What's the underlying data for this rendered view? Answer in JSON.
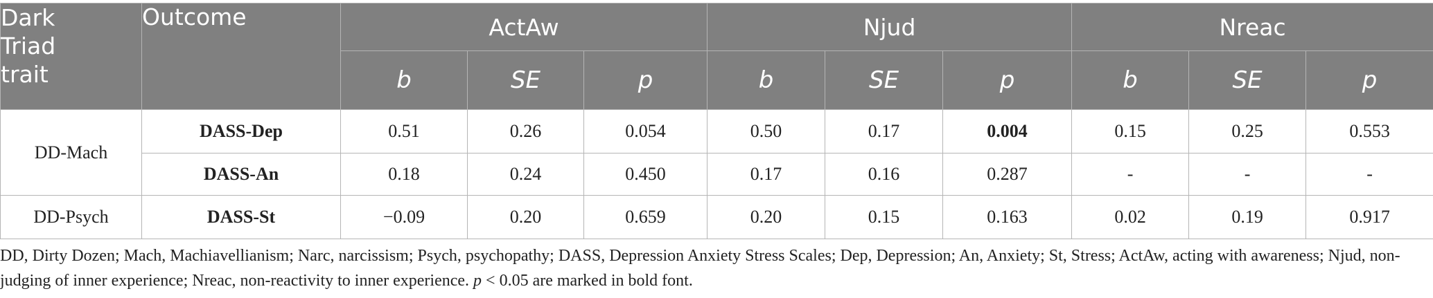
{
  "header": {
    "trait_line1": "Dark",
    "trait_line2": "Triad",
    "trait_line3": "trait",
    "outcome": "Outcome",
    "groups": [
      "ActAw",
      "Njud",
      "Nreac"
    ],
    "sub": [
      "b",
      "SE",
      "p"
    ]
  },
  "rows": [
    {
      "trait": "DD-Mach",
      "outcome": "DASS-Dep",
      "vals": [
        "0.51",
        "0.26",
        "0.054",
        "0.50",
        "0.17",
        "0.004",
        "0.15",
        "0.25",
        "0.553"
      ]
    },
    {
      "outcome": "DASS-An",
      "vals": [
        "0.18",
        "0.24",
        "0.450",
        "0.17",
        "0.16",
        "0.287",
        "-",
        "-",
        "-"
      ]
    },
    {
      "trait": "DD-Psych",
      "outcome": "DASS-St",
      "vals": [
        "−0.09",
        "0.20",
        "0.659",
        "0.20",
        "0.15",
        "0.163",
        "0.02",
        "0.19",
        "0.917"
      ]
    }
  ],
  "footnote": {
    "text_before_p": "DD, Dirty Dozen; Mach, Machiavellianism; Narc, narcissism; Psych, psychopathy; DASS, Depression Anxiety Stress Scales; Dep, Depression; An, Anxiety; St, Stress; ActAw, acting with awareness; Njud, non-judging of inner experience; Nreac, non-reactivity to inner experience. ",
    "p_symbol": "p",
    "text_after_p": " < 0.05 are marked in bold font."
  }
}
